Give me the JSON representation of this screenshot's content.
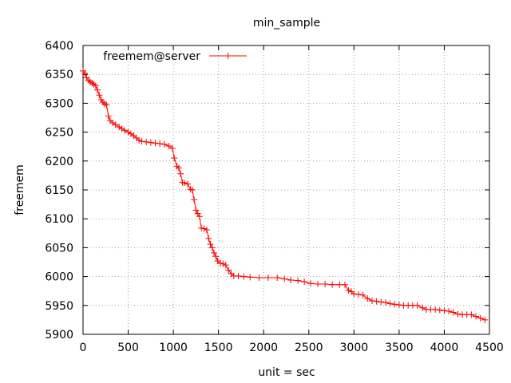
{
  "chart_data": {
    "type": "line",
    "title": "min_sample",
    "xlabel": "unit = sec",
    "ylabel": "freemem",
    "xlim": [
      0,
      4500
    ],
    "ylim": [
      5900,
      6400
    ],
    "x_ticks": [
      0,
      500,
      1000,
      1500,
      2000,
      2500,
      3000,
      3500,
      4000,
      4500
    ],
    "y_ticks": [
      5900,
      5950,
      6000,
      6050,
      6100,
      6150,
      6200,
      6250,
      6300,
      6350,
      6400
    ],
    "grid": true,
    "grid_style": "dotted",
    "legend_position": "top-left",
    "series": [
      {
        "name": "freemem@server",
        "color": "#ff0000",
        "marker": "plus",
        "points": [
          [
            0,
            6356
          ],
          [
            20,
            6352
          ],
          [
            40,
            6344
          ],
          [
            60,
            6340
          ],
          [
            80,
            6337
          ],
          [
            100,
            6335
          ],
          [
            120,
            6333
          ],
          [
            140,
            6330
          ],
          [
            160,
            6323
          ],
          [
            180,
            6314
          ],
          [
            200,
            6306
          ],
          [
            220,
            6302
          ],
          [
            240,
            6299
          ],
          [
            260,
            6297
          ],
          [
            280,
            6278
          ],
          [
            300,
            6270
          ],
          [
            330,
            6266
          ],
          [
            360,
            6263
          ],
          [
            400,
            6259
          ],
          [
            430,
            6256
          ],
          [
            460,
            6253
          ],
          [
            500,
            6250
          ],
          [
            530,
            6247
          ],
          [
            560,
            6244
          ],
          [
            590,
            6240
          ],
          [
            620,
            6236
          ],
          [
            650,
            6234
          ],
          [
            700,
            6233
          ],
          [
            750,
            6232
          ],
          [
            800,
            6231
          ],
          [
            850,
            6230
          ],
          [
            900,
            6229
          ],
          [
            950,
            6226
          ],
          [
            990,
            6222
          ],
          [
            1010,
            6205
          ],
          [
            1040,
            6191
          ],
          [
            1060,
            6188
          ],
          [
            1080,
            6178
          ],
          [
            1100,
            6163
          ],
          [
            1120,
            6162
          ],
          [
            1160,
            6160
          ],
          [
            1190,
            6151
          ],
          [
            1210,
            6150
          ],
          [
            1230,
            6133
          ],
          [
            1250,
            6115
          ],
          [
            1270,
            6109
          ],
          [
            1290,
            6104
          ],
          [
            1310,
            6084
          ],
          [
            1340,
            6083
          ],
          [
            1370,
            6081
          ],
          [
            1390,
            6066
          ],
          [
            1410,
            6056
          ],
          [
            1430,
            6050
          ],
          [
            1450,
            6041
          ],
          [
            1470,
            6035
          ],
          [
            1490,
            6027
          ],
          [
            1520,
            6023
          ],
          [
            1550,
            6022
          ],
          [
            1580,
            6020
          ],
          [
            1610,
            6011
          ],
          [
            1640,
            6005
          ],
          [
            1670,
            6001
          ],
          [
            1720,
            6001
          ],
          [
            1780,
            6000
          ],
          [
            1850,
            5999
          ],
          [
            1950,
            5998
          ],
          [
            2050,
            5998
          ],
          [
            2150,
            5998
          ],
          [
            2230,
            5996
          ],
          [
            2300,
            5994
          ],
          [
            2380,
            5993
          ],
          [
            2450,
            5991
          ],
          [
            2520,
            5988
          ],
          [
            2600,
            5987
          ],
          [
            2680,
            5987
          ],
          [
            2760,
            5986
          ],
          [
            2840,
            5986
          ],
          [
            2900,
            5986
          ],
          [
            2940,
            5976
          ],
          [
            2970,
            5974
          ],
          [
            3000,
            5970
          ],
          [
            3050,
            5969
          ],
          [
            3100,
            5968
          ],
          [
            3150,
            5962
          ],
          [
            3200,
            5958
          ],
          [
            3250,
            5957
          ],
          [
            3300,
            5956
          ],
          [
            3350,
            5955
          ],
          [
            3400,
            5953
          ],
          [
            3450,
            5952
          ],
          [
            3500,
            5951
          ],
          [
            3550,
            5950
          ],
          [
            3600,
            5950
          ],
          [
            3650,
            5950
          ],
          [
            3700,
            5950
          ],
          [
            3760,
            5946
          ],
          [
            3800,
            5943
          ],
          [
            3850,
            5943
          ],
          [
            3900,
            5943
          ],
          [
            3950,
            5942
          ],
          [
            4000,
            5941
          ],
          [
            4050,
            5940
          ],
          [
            4100,
            5938
          ],
          [
            4150,
            5935
          ],
          [
            4200,
            5934
          ],
          [
            4250,
            5934
          ],
          [
            4300,
            5934
          ],
          [
            4350,
            5931
          ],
          [
            4400,
            5928
          ],
          [
            4450,
            5925
          ]
        ]
      }
    ]
  }
}
